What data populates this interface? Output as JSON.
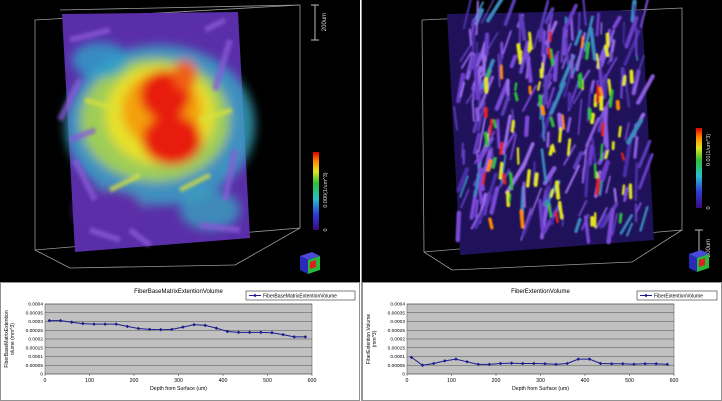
{
  "left": {
    "scalebar_label": "200um",
    "colorbar_label": "0.000(1/um^3)",
    "colorbar_min": "0",
    "chart_data": {
      "type": "line",
      "title": "FiberBaseMatrixExtentionVolume",
      "legend": "FiberBaseMatrixExtentionVolume",
      "legend_position": "top-right",
      "xlabel": "Depth from Surface (um)",
      "ylabel": [
        "FiberBaseMatrixExtention",
        "olume (mm^3)"
      ],
      "xlim": [
        0,
        600
      ],
      "ylim": [
        0,
        0.0004
      ],
      "xticks": [
        "0",
        "100",
        "200",
        "300",
        "400",
        "500",
        "600"
      ],
      "yticks": [
        "0",
        "0.00005",
        "0.0001",
        "0.00015",
        "0.0002",
        "0.00025",
        "0.0003",
        "0.00035",
        "0.0004"
      ],
      "series": [
        {
          "name": "FiberBaseMatrixExtentionVolume",
          "x": [
            10,
            35,
            60,
            85,
            110,
            135,
            160,
            185,
            210,
            235,
            260,
            285,
            310,
            335,
            360,
            385,
            410,
            435,
            460,
            485,
            510,
            535,
            560,
            585
          ],
          "y": [
            0.000305,
            0.000305,
            0.000296,
            0.000288,
            0.000285,
            0.000285,
            0.000285,
            0.000272,
            0.00026,
            0.000255,
            0.000253,
            0.000255,
            0.000268,
            0.000282,
            0.000278,
            0.000262,
            0.000243,
            0.000238,
            0.000238,
            0.000238,
            0.000236,
            0.000225,
            0.000212,
            0.000212
          ]
        }
      ],
      "grid": true,
      "plot_bg": "#c0c0c0",
      "line_color": "#1c1c8c"
    }
  },
  "right": {
    "scalebar_label": "200um",
    "colorbar_label": "0.01(1/um^3)",
    "colorbar_min": "0",
    "chart_data": {
      "type": "line",
      "title": "FiberExtentionVolume",
      "legend": "FiberExtentionVolume",
      "legend_position": "top-right",
      "xlabel": "Depth from Surface (um)",
      "ylabel": [
        "FiberExtention Volume",
        "(mm^3)"
      ],
      "xlim": [
        0,
        600
      ],
      "ylim": [
        0,
        0.0004
      ],
      "xticks": [
        "0",
        "100",
        "200",
        "300",
        "400",
        "500",
        "600"
      ],
      "yticks": [
        "0",
        "0.00005",
        "0.0001",
        "0.00015",
        "0.0002",
        "0.00025",
        "0.0003",
        "0.00035",
        "0.0004"
      ],
      "series": [
        {
          "name": "FiberExtentionVolume",
          "x": [
            10,
            35,
            60,
            85,
            110,
            135,
            160,
            185,
            210,
            235,
            260,
            285,
            310,
            335,
            360,
            385,
            410,
            435,
            460,
            485,
            510,
            535,
            560,
            585
          ],
          "y": [
            9.5e-05,
            5e-05,
            6e-05,
            7.5e-05,
            8.5e-05,
            7e-05,
            5.5e-05,
            5.5e-05,
            6e-05,
            6.2e-05,
            6e-05,
            6e-05,
            5.8e-05,
            5.5e-05,
            6e-05,
            8.5e-05,
            8.5e-05,
            6e-05,
            5.8e-05,
            5.8e-05,
            5.6e-05,
            5.8e-05,
            5.8e-05,
            5.5e-05
          ]
        }
      ],
      "grid": true,
      "plot_bg": "#c0c0c0",
      "line_color": "#1c1c8c"
    }
  }
}
